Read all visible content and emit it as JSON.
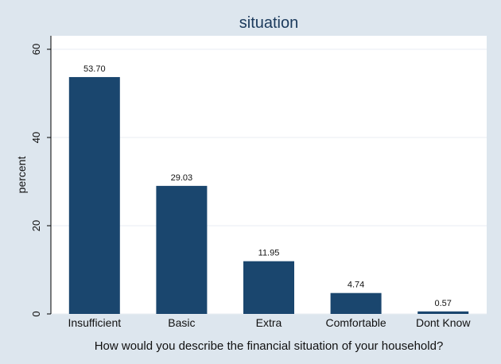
{
  "chart_data": {
    "type": "bar",
    "title": "situation",
    "xlabel": "How would you describe the financial situation of your household?",
    "ylabel": "percent",
    "categories": [
      "Insufficient",
      "Basic",
      "Extra",
      "Comfortable",
      "Dont Know"
    ],
    "values": [
      53.7,
      29.03,
      11.95,
      4.74,
      0.57
    ],
    "value_labels": [
      "53.70",
      "29.03",
      "11.95",
      "4.74",
      "0.57"
    ],
    "yticks": [
      0,
      20,
      40,
      60
    ],
    "ytick_labels": [
      "0",
      "20",
      "40",
      "60"
    ],
    "ylim": [
      0,
      60
    ],
    "grid": true,
    "colors": {
      "bar": "#1a466e",
      "background": "#dde6ee",
      "plot_background": "#ffffff",
      "grid": "#e9eef3",
      "title": "#1b3a5c"
    }
  }
}
